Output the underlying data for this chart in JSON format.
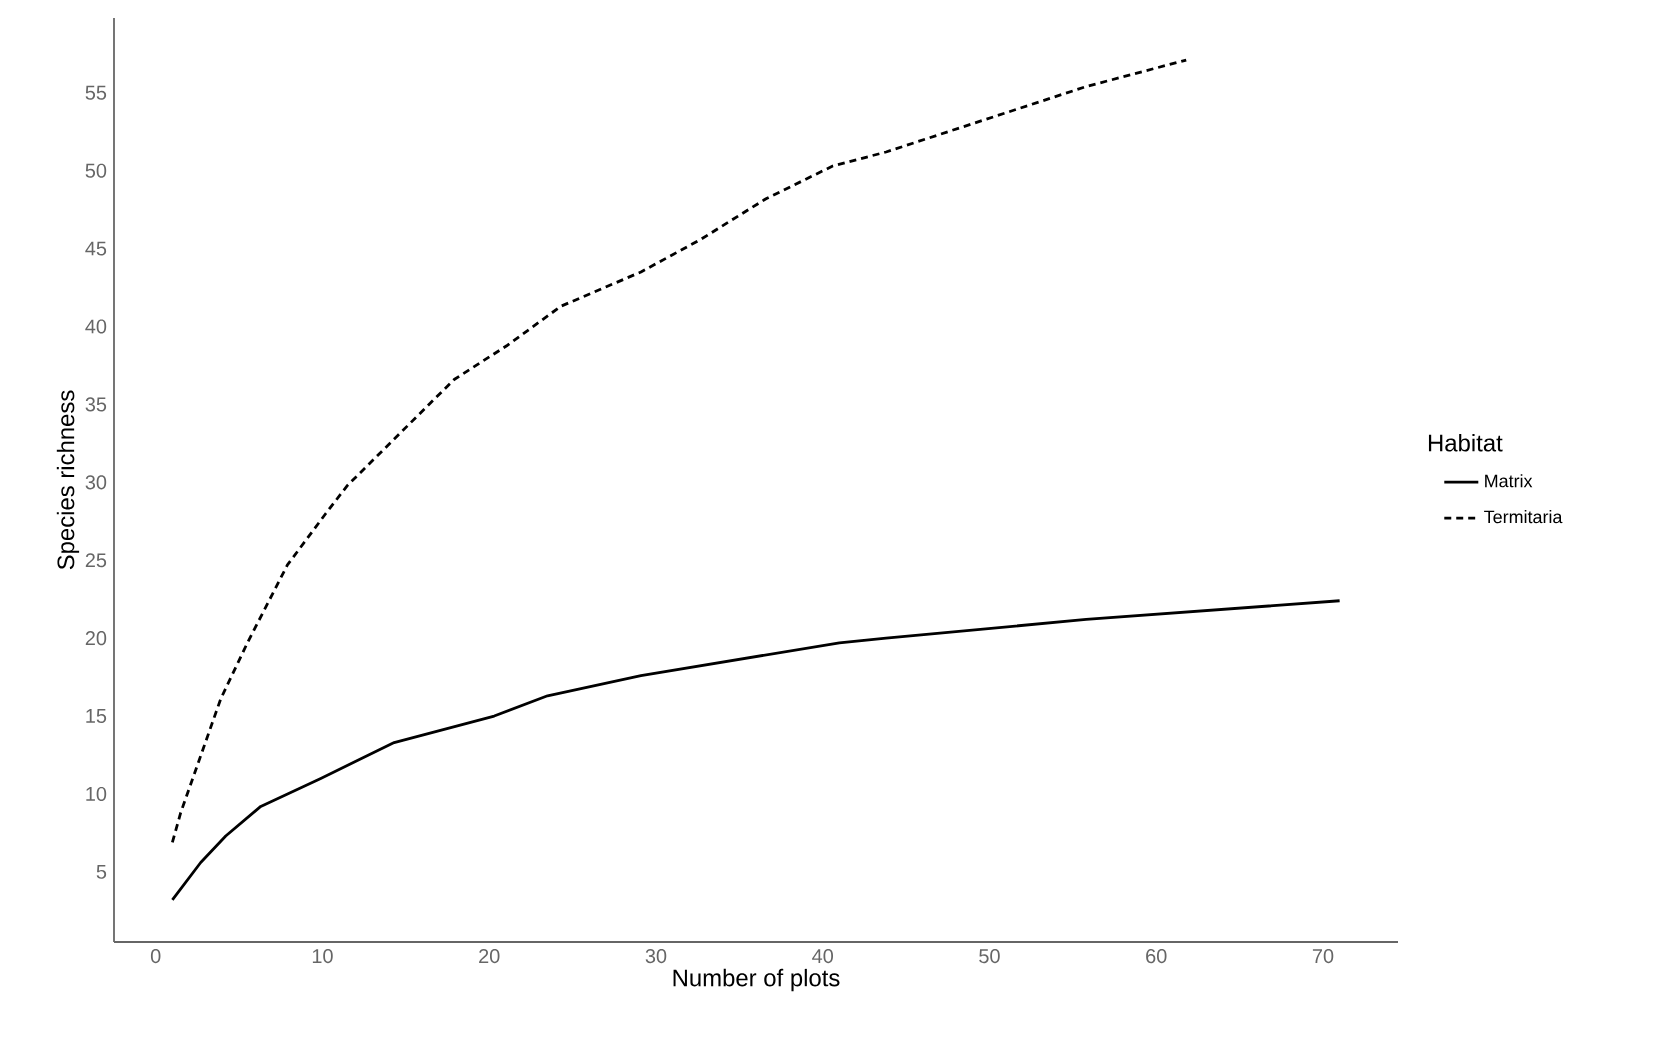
{
  "chart_data": {
    "type": "line",
    "xlabel": "Number of plots",
    "ylabel": "Species richness",
    "legend_title": "Habitat",
    "legend": "right",
    "xlim": [
      -2.5,
      74.5
    ],
    "ylim": [
      0.5,
      59.8
    ],
    "xticks": [
      0,
      10,
      20,
      30,
      40,
      50,
      60,
      70
    ],
    "yticks": [
      5,
      10,
      15,
      20,
      25,
      30,
      35,
      40,
      45,
      50,
      55
    ],
    "series": [
      {
        "name": "Matrix",
        "color": "#000000",
        "line_style": "solid",
        "x": [
          1,
          2.7,
          4.2,
          6.3,
          9.9,
          14.3,
          20.3,
          23.5,
          29.1,
          41,
          43.8,
          55.8,
          71
        ],
        "values": [
          3.2,
          5.6,
          7.3,
          9.2,
          11.0,
          13.3,
          15.0,
          16.3,
          17.6,
          19.7,
          20.0,
          21.2,
          22.4
        ]
      },
      {
        "name": "Termitaria",
        "color": "#000000",
        "line_style": "dashed",
        "x": [
          1,
          1.5,
          3.9,
          5.5,
          7.9,
          10.2,
          11.5,
          14.7,
          17.9,
          21.1,
          24.3,
          29.1,
          32.7,
          36.6,
          40.6,
          43.8,
          49.8,
          55.8,
          61.8
        ],
        "values": [
          6.9,
          8.8,
          16.1,
          19.7,
          24.7,
          28.0,
          29.8,
          33.2,
          36.6,
          38.8,
          41.3,
          43.5,
          45.6,
          48.2,
          50.3,
          51.2,
          53.3,
          55.4,
          57.1
        ]
      }
    ]
  }
}
